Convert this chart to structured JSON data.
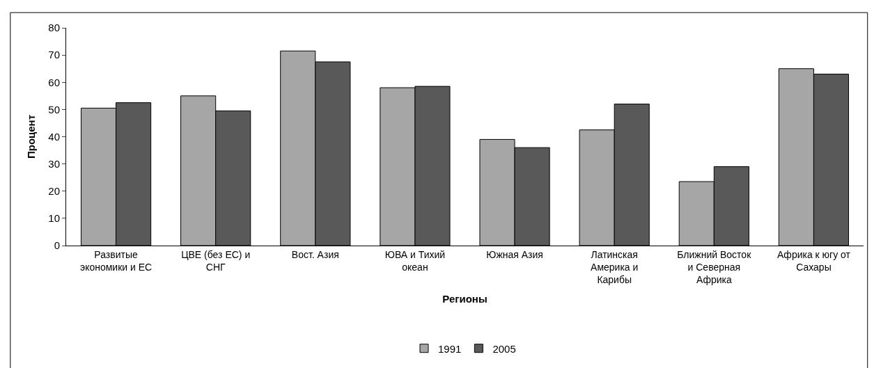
{
  "chart_data": {
    "type": "bar",
    "xlabel": "Регионы",
    "ylabel": "Процент",
    "categories": [
      "Развитые экономики и ЕС",
      "ЦВЕ (без ЕС) и СНГ",
      "Вост. Азия",
      "ЮВА и Тихий океан",
      "Южная Азия",
      "Латинская Америка и Карибы",
      "Ближний Восток и Северная Африка",
      "Африка к югу от Сахары"
    ],
    "series": [
      {
        "name": "1991",
        "color": "#a6a6a6",
        "values": [
          50.5,
          55,
          71.5,
          58,
          39,
          42.5,
          23.5,
          65
        ]
      },
      {
        "name": "2005",
        "color": "#595959",
        "values": [
          52.5,
          49.5,
          67.5,
          58.5,
          36,
          52,
          29,
          63
        ]
      }
    ],
    "ylim": [
      0,
      80
    ],
    "yticks": [
      0,
      10,
      20,
      30,
      40,
      50,
      60,
      70,
      80
    ],
    "legend": "bottom"
  }
}
